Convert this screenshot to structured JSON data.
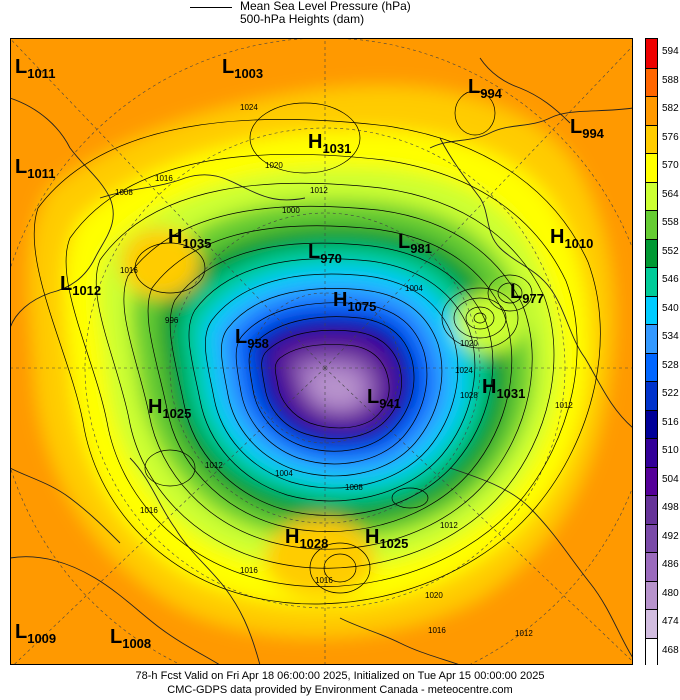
{
  "header": {
    "line1": "Mean Sea Level Pressure (hPa)",
    "line2": "500-hPa Heights (dam)"
  },
  "colorbar": {
    "values": [
      "594",
      "588",
      "582",
      "576",
      "570",
      "564",
      "558",
      "552",
      "546",
      "540",
      "534",
      "528",
      "522",
      "516",
      "510",
      "504",
      "498",
      "492",
      "486",
      "480",
      "474",
      "468"
    ],
    "colors": [
      "#ee0000",
      "#ff6600",
      "#ff9900",
      "#ffcc00",
      "#ffff00",
      "#ccff33",
      "#66cc33",
      "#009933",
      "#00cc99",
      "#00ccff",
      "#3399ff",
      "#0066ff",
      "#0033cc",
      "#000099",
      "#330099",
      "#550099",
      "#663399",
      "#7a4aa8",
      "#9b6bbd",
      "#b793cc",
      "#d2bde0",
      "#ffffff"
    ]
  },
  "centers": [
    {
      "type": "L",
      "value": "1011"
    },
    {
      "type": "L",
      "value": "1003"
    },
    {
      "type": "L",
      "value": "994"
    },
    {
      "type": "L",
      "value": "994"
    },
    {
      "type": "H",
      "value": "1031"
    },
    {
      "type": "L",
      "value": "1011"
    },
    {
      "type": "H",
      "value": "1035"
    },
    {
      "type": "L",
      "value": "970"
    },
    {
      "type": "L",
      "value": "981"
    },
    {
      "type": "H",
      "value": "1010"
    },
    {
      "type": "L",
      "value": "1012"
    },
    {
      "type": "L",
      "value": "977"
    },
    {
      "type": "H",
      "value": "1075"
    },
    {
      "type": "L",
      "value": "958"
    },
    {
      "type": "H",
      "value": "1031"
    },
    {
      "type": "L",
      "value": "941"
    },
    {
      "type": "H",
      "value": "1025"
    },
    {
      "type": "H",
      "value": "1028"
    },
    {
      "type": "H",
      "value": "1025"
    },
    {
      "type": "L",
      "value": "1009"
    },
    {
      "type": "L",
      "value": "1008"
    }
  ],
  "isobar_labels": [
    "1024",
    "1020",
    "1016",
    "1012",
    "1008",
    "1004",
    "1000",
    "996",
    "1016",
    "1020",
    "1024",
    "1028",
    "1004",
    "1012",
    "1016",
    "1012",
    "1008",
    "1012",
    "1016",
    "1016",
    "1020",
    "1016",
    "1012"
  ],
  "footer": {
    "line1": "78-h Fcst Valid on Fri Apr 18 06:00:00 2025, Initialized on Tue Apr 15 00:00:00 2025",
    "line2": "CMC-GDPS data provided by Environment Canada - meteocentre.com"
  }
}
